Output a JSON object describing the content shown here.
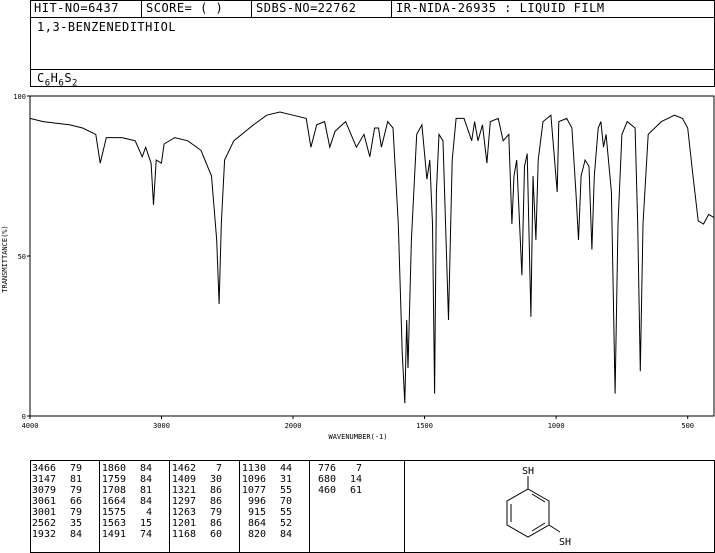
{
  "header": {
    "hit_no": "HIT-NO=6437",
    "score": "SCORE=  (  )",
    "sdbs_no": "SDBS-NO=22762",
    "ir_nida": "IR-NIDA-26935 : LIQUID FILM"
  },
  "compound": {
    "name": "1,3-BENZENEDITHIOL",
    "formula_parts": [
      {
        "t": "C",
        "sub": false
      },
      {
        "t": "6",
        "sub": true
      },
      {
        "t": "H",
        "sub": false
      },
      {
        "t": "6",
        "sub": true
      },
      {
        "t": "S",
        "sub": false
      },
      {
        "t": "2",
        "sub": true
      }
    ]
  },
  "chart_data": {
    "type": "line",
    "title": "",
    "xlabel": "WAVENUMBER(-1)",
    "ylabel": "TRANSMITTANCE(%)",
    "xlim": [
      4000,
      400
    ],
    "ylim": [
      0,
      100
    ],
    "x_ticks": [
      4000,
      3000,
      2000,
      1500,
      1000,
      500
    ],
    "y_ticks": [
      0,
      50,
      100
    ],
    "spectrum": [
      [
        4000,
        93
      ],
      [
        3900,
        92
      ],
      [
        3800,
        91.5
      ],
      [
        3700,
        91
      ],
      [
        3600,
        90
      ],
      [
        3500,
        88
      ],
      [
        3466,
        79
      ],
      [
        3420,
        87
      ],
      [
        3300,
        87
      ],
      [
        3200,
        86
      ],
      [
        3147,
        81
      ],
      [
        3120,
        84
      ],
      [
        3079,
        79
      ],
      [
        3061,
        66
      ],
      [
        3040,
        80
      ],
      [
        3001,
        79
      ],
      [
        2980,
        85
      ],
      [
        2900,
        87
      ],
      [
        2800,
        86
      ],
      [
        2700,
        83
      ],
      [
        2620,
        75
      ],
      [
        2580,
        55
      ],
      [
        2562,
        35
      ],
      [
        2545,
        60
      ],
      [
        2520,
        80
      ],
      [
        2450,
        86
      ],
      [
        2300,
        91
      ],
      [
        2200,
        94
      ],
      [
        2100,
        95
      ],
      [
        2000,
        94
      ],
      [
        1950,
        93
      ],
      [
        1932,
        84
      ],
      [
        1910,
        91
      ],
      [
        1880,
        92
      ],
      [
        1860,
        84
      ],
      [
        1840,
        89
      ],
      [
        1800,
        92
      ],
      [
        1759,
        84
      ],
      [
        1730,
        88
      ],
      [
        1708,
        81
      ],
      [
        1690,
        90
      ],
      [
        1675,
        90
      ],
      [
        1664,
        84
      ],
      [
        1640,
        92
      ],
      [
        1620,
        90
      ],
      [
        1600,
        60
      ],
      [
        1585,
        20
      ],
      [
        1575,
        4
      ],
      [
        1568,
        30
      ],
      [
        1563,
        15
      ],
      [
        1550,
        55
      ],
      [
        1530,
        88
      ],
      [
        1510,
        91
      ],
      [
        1491,
        74
      ],
      [
        1480,
        80
      ],
      [
        1470,
        60
      ],
      [
        1462,
        7
      ],
      [
        1455,
        70
      ],
      [
        1445,
        88
      ],
      [
        1430,
        86
      ],
      [
        1409,
        30
      ],
      [
        1395,
        80
      ],
      [
        1380,
        93
      ],
      [
        1350,
        93
      ],
      [
        1321,
        86
      ],
      [
        1310,
        92
      ],
      [
        1297,
        86
      ],
      [
        1280,
        91
      ],
      [
        1263,
        79
      ],
      [
        1250,
        92
      ],
      [
        1220,
        93
      ],
      [
        1201,
        86
      ],
      [
        1180,
        88
      ],
      [
        1168,
        60
      ],
      [
        1160,
        75
      ],
      [
        1150,
        80
      ],
      [
        1130,
        44
      ],
      [
        1120,
        78
      ],
      [
        1110,
        82
      ],
      [
        1096,
        31
      ],
      [
        1088,
        75
      ],
      [
        1077,
        55
      ],
      [
        1068,
        80
      ],
      [
        1050,
        92
      ],
      [
        1020,
        94
      ],
      [
        996,
        70
      ],
      [
        990,
        92
      ],
      [
        960,
        93
      ],
      [
        940,
        90
      ],
      [
        925,
        70
      ],
      [
        915,
        55
      ],
      [
        905,
        75
      ],
      [
        890,
        80
      ],
      [
        875,
        78
      ],
      [
        864,
        52
      ],
      [
        855,
        75
      ],
      [
        840,
        90
      ],
      [
        830,
        92
      ],
      [
        820,
        84
      ],
      [
        810,
        88
      ],
      [
        790,
        70
      ],
      [
        776,
        7
      ],
      [
        765,
        60
      ],
      [
        750,
        88
      ],
      [
        730,
        92
      ],
      [
        700,
        90
      ],
      [
        690,
        60
      ],
      [
        680,
        14
      ],
      [
        670,
        60
      ],
      [
        650,
        88
      ],
      [
        600,
        92
      ],
      [
        550,
        94
      ],
      [
        520,
        93
      ],
      [
        500,
        90
      ],
      [
        480,
        75
      ],
      [
        460,
        61
      ],
      [
        440,
        60
      ],
      [
        420,
        63
      ],
      [
        400,
        62
      ]
    ],
    "peaks": [
      [
        3466,
        79
      ],
      [
        3147,
        81
      ],
      [
        3079,
        79
      ],
      [
        3061,
        66
      ],
      [
        3001,
        79
      ],
      [
        2562,
        35
      ],
      [
        1932,
        84
      ],
      [
        1860,
        84
      ],
      [
        1759,
        84
      ],
      [
        1708,
        81
      ],
      [
        1664,
        84
      ],
      [
        1575,
        4
      ],
      [
        1563,
        15
      ],
      [
        1491,
        74
      ],
      [
        1462,
        7
      ],
      [
        1409,
        30
      ],
      [
        1321,
        86
      ],
      [
        1297,
        86
      ],
      [
        1263,
        79
      ],
      [
        1201,
        86
      ],
      [
        1168,
        60
      ],
      [
        1130,
        44
      ],
      [
        1096,
        31
      ],
      [
        1077,
        55
      ],
      [
        996,
        70
      ],
      [
        915,
        55
      ],
      [
        864,
        52
      ],
      [
        820,
        84
      ],
      [
        776,
        7
      ],
      [
        680,
        14
      ],
      [
        460,
        61
      ]
    ]
  },
  "structure": {
    "label_top": "SH",
    "label_bottom": "SH"
  }
}
